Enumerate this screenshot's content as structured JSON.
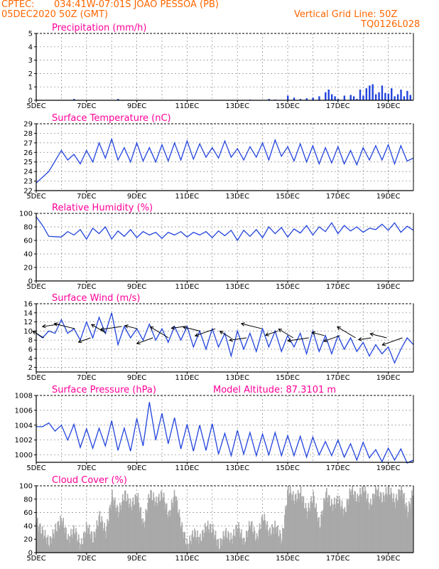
{
  "header": {
    "center": "CPTEC:",
    "location": "034:41W-07:01S  JOAO PESSOA (PB)",
    "date": "05DEC2020 50Z (GMT)",
    "grid_line": "Vertical Grid Line: 50Z",
    "run_code": "TQ0126L028"
  },
  "colors": {
    "header": "#ff6600",
    "title": "#ff0099",
    "line": "#2244dd",
    "cloud": "#a9a9a9",
    "arrow": "#000000"
  },
  "x_labels": [
    "5DEC",
    "7DEC",
    "9DEC",
    "11DEC",
    "13DEC",
    "15DEC",
    "17DEC",
    "19DEC"
  ],
  "x_axis": {
    "start_day": 5,
    "end_day": 20,
    "grid": "dashed, every day"
  },
  "chart_data": [
    {
      "type": "bar",
      "title": "Precipitation (mm/h)",
      "ylim": [
        0,
        5
      ],
      "yticks": [
        "0",
        "1",
        "2",
        "3",
        "4",
        "5"
      ],
      "x": [
        "5DEC00",
        "6DEC12",
        "8DEC06",
        "13DEC12",
        "14DEC06",
        "14DEC12",
        "15DEC00",
        "15DEC06",
        "15DEC12",
        "15DEC18",
        "16DEC00",
        "16DEC06",
        "16DEC12",
        "16DEC15",
        "16DEC18",
        "16DEC21",
        "17DEC00",
        "17DEC06",
        "17DEC12",
        "17DEC15",
        "17DEC18",
        "17DEC21",
        "18DEC00",
        "18DEC03",
        "18DEC06",
        "18DEC09",
        "18DEC12",
        "18DEC15",
        "18DEC18",
        "18DEC21",
        "19DEC00",
        "19DEC03",
        "19DEC06",
        "19DEC09",
        "19DEC12",
        "19DEC15",
        "19DEC18",
        "19DEC21"
      ],
      "values": [
        0.05,
        0.1,
        0.1,
        0.05,
        0.1,
        0.05,
        0.35,
        0.2,
        0.1,
        0.15,
        0.2,
        0.3,
        0.6,
        0.8,
        0.45,
        0.3,
        0.1,
        0.35,
        0.4,
        0.3,
        0.1,
        0.8,
        0.35,
        0.9,
        1.1,
        1.2,
        0.45,
        0.6,
        1.1,
        0.55,
        0.5,
        0.9,
        0.3,
        0.45,
        0.8,
        0.3,
        0.7,
        0.4
      ]
    },
    {
      "type": "line",
      "title": "Surface Temperature (nC)",
      "ylim": [
        22,
        29
      ],
      "yticks": [
        "22",
        "23",
        "24",
        "25",
        "26",
        "27",
        "28",
        "29"
      ],
      "x_days": [
        5.0,
        5.5,
        6.0,
        6.25,
        6.5,
        6.75,
        7.0,
        7.25,
        7.5,
        7.75,
        8.0,
        8.25,
        8.5,
        8.75,
        9.0,
        9.25,
        9.5,
        9.75,
        10.0,
        10.25,
        10.5,
        10.75,
        11.0,
        11.25,
        11.5,
        11.75,
        12.0,
        12.25,
        12.5,
        12.75,
        13.0,
        13.25,
        13.5,
        13.75,
        14.0,
        14.25,
        14.5,
        14.75,
        15.0,
        15.25,
        15.5,
        15.75,
        16.0,
        16.25,
        16.5,
        16.75,
        17.0,
        17.25,
        17.5,
        17.75,
        18.0,
        18.25,
        18.5,
        18.75,
        19.0,
        19.25,
        19.5,
        19.75,
        20.0
      ],
      "values": [
        22.8,
        24.0,
        26.2,
        25.2,
        25.8,
        24.8,
        26.2,
        25.0,
        27.0,
        25.4,
        27.4,
        25.2,
        26.5,
        25.0,
        27.0,
        25.1,
        26.5,
        25.0,
        26.8,
        25.1,
        27.0,
        25.2,
        27.2,
        25.3,
        26.9,
        25.5,
        26.5,
        25.4,
        27.2,
        25.5,
        26.4,
        25.2,
        26.6,
        25.5,
        27.0,
        25.2,
        27.3,
        25.6,
        26.6,
        25.1,
        26.9,
        25.0,
        26.7,
        24.8,
        26.5,
        24.9,
        26.6,
        24.8,
        26.2,
        24.7,
        26.5,
        25.2,
        26.7,
        25.2,
        26.8,
        24.8,
        26.7,
        25.1,
        25.4
      ]
    },
    {
      "type": "line",
      "title": "Relative Humidity (%)",
      "ylim": [
        0,
        100
      ],
      "yticks": [
        "0",
        "20",
        "40",
        "60",
        "80",
        "100"
      ],
      "x_days": [
        5.0,
        5.25,
        5.5,
        6.0,
        6.25,
        6.5,
        6.75,
        7.0,
        7.25,
        7.5,
        7.75,
        8.0,
        8.25,
        8.5,
        8.75,
        9.0,
        9.25,
        9.5,
        9.75,
        10.0,
        10.25,
        10.5,
        10.75,
        11.0,
        11.25,
        11.5,
        11.75,
        12.0,
        12.25,
        12.5,
        12.75,
        13.0,
        13.25,
        13.5,
        13.75,
        14.0,
        14.25,
        14.5,
        14.75,
        15.0,
        15.25,
        15.5,
        15.75,
        16.0,
        16.25,
        16.5,
        16.75,
        17.0,
        17.25,
        17.5,
        17.75,
        18.0,
        18.25,
        18.5,
        18.75,
        19.0,
        19.25,
        19.5,
        19.75,
        20.0
      ],
      "values": [
        95,
        82,
        66,
        65,
        73,
        68,
        76,
        62,
        78,
        70,
        80,
        62,
        74,
        66,
        76,
        64,
        73,
        68,
        72,
        63,
        72,
        68,
        73,
        65,
        72,
        68,
        73,
        64,
        74,
        67,
        75,
        60,
        75,
        66,
        76,
        64,
        80,
        70,
        79,
        65,
        77,
        71,
        82,
        68,
        80,
        73,
        86,
        70,
        82,
        74,
        80,
        72,
        78,
        76,
        84,
        75,
        86,
        72,
        81,
        75
      ]
    },
    {
      "type": "line",
      "title": "Surface Wind (m/s)",
      "ylim": [
        1,
        16
      ],
      "yticks": [
        "2",
        "4",
        "6",
        "8",
        "10",
        "12",
        "14",
        "16"
      ],
      "x_days": [
        5.0,
        5.25,
        5.5,
        5.75,
        6.0,
        6.25,
        6.5,
        6.75,
        7.0,
        7.25,
        7.5,
        7.75,
        8.0,
        8.25,
        8.5,
        8.75,
        9.0,
        9.25,
        9.5,
        9.75,
        10.0,
        10.25,
        10.5,
        10.75,
        11.0,
        11.25,
        11.5,
        11.75,
        12.0,
        12.25,
        12.5,
        12.75,
        13.0,
        13.25,
        13.5,
        13.75,
        14.0,
        14.25,
        14.5,
        14.75,
        15.0,
        15.25,
        15.5,
        15.75,
        16.0,
        16.25,
        16.5,
        16.75,
        17.0,
        17.25,
        17.5,
        17.75,
        18.0,
        18.25,
        18.5,
        18.75,
        19.0,
        19.25,
        19.5,
        19.75,
        20.0
      ],
      "values": [
        9.5,
        8.5,
        10.0,
        9.5,
        12.5,
        9.5,
        10.5,
        8.0,
        12.0,
        8.5,
        13.0,
        9.5,
        14.0,
        7.0,
        11.0,
        8.5,
        10.5,
        8.0,
        11.5,
        8.0,
        10.5,
        7.5,
        11.0,
        8.0,
        11.0,
        6.5,
        10.0,
        6.0,
        10.5,
        6.5,
        9.5,
        4.5,
        10.0,
        6.0,
        9.5,
        5.5,
        10.5,
        6.5,
        10.0,
        5.5,
        9.0,
        6.5,
        9.5,
        5.0,
        10.0,
        5.5,
        9.0,
        5.0,
        9.0,
        6.0,
        8.5,
        5.5,
        7.5,
        4.5,
        7.0,
        5.0,
        6.5,
        3.0,
        6.0,
        8.5,
        7.0
      ],
      "arrows_label": "wind direction vectors"
    },
    {
      "type": "line",
      "title": "Surface Pressure (hPa)",
      "model_altitude": "Model Altitude: 87.3101 m",
      "ylim": [
        999,
        1008
      ],
      "yticks": [
        "1000",
        "1002",
        "1004",
        "1006",
        "1008"
      ],
      "x_days": [
        5.0,
        5.25,
        5.5,
        5.75,
        6.0,
        6.25,
        6.5,
        6.75,
        7.0,
        7.25,
        7.5,
        7.75,
        8.0,
        8.25,
        8.5,
        8.75,
        9.0,
        9.25,
        9.5,
        9.75,
        10.0,
        10.25,
        10.5,
        10.75,
        11.0,
        11.25,
        11.5,
        11.75,
        12.0,
        12.25,
        12.5,
        12.75,
        13.0,
        13.25,
        13.5,
        13.75,
        14.0,
        14.25,
        14.5,
        14.75,
        15.0,
        15.25,
        15.5,
        15.75,
        16.0,
        16.25,
        16.5,
        16.75,
        17.0,
        17.25,
        17.5,
        17.75,
        18.0,
        18.25,
        18.5,
        18.75,
        19.0,
        19.25,
        19.5,
        19.75,
        20.0
      ],
      "values": [
        1003.8,
        1003.8,
        1004.3,
        1003.2,
        1004.0,
        1002.0,
        1004.1,
        1001.0,
        1003.5,
        1000.9,
        1003.6,
        1001.2,
        1004.6,
        1000.6,
        1003.6,
        1000.5,
        1004.9,
        1001.2,
        1007.1,
        1002.0,
        1005.6,
        1001.5,
        1005.0,
        1000.8,
        1004.1,
        1000.5,
        1004.0,
        1000.6,
        1004.2,
        1000.1,
        1002.9,
        999.9,
        1003.3,
        1000.1,
        1003.0,
        999.9,
        1002.8,
        1000.0,
        1003.0,
        999.9,
        1002.6,
        999.9,
        1002.5,
        999.7,
        1002.4,
        1000.0,
        1001.8,
        999.9,
        1002.0,
        999.7,
        1001.5,
        999.3,
        1001.7,
        999.6,
        1000.7,
        999.1,
        1000.9,
        999.3,
        1000.8,
        998.9,
        999.3
      ]
    },
    {
      "type": "area",
      "title": "Cloud Cover (%)",
      "ylim": [
        0,
        100
      ],
      "yticks": [
        "0",
        "20",
        "40",
        "60",
        "80",
        "100"
      ],
      "x_days": [
        5.0,
        5.25,
        5.5,
        5.75,
        6.0,
        6.25,
        6.5,
        6.75,
        7.0,
        7.25,
        7.5,
        7.75,
        8.0,
        8.25,
        8.5,
        8.75,
        9.0,
        9.25,
        9.5,
        9.75,
        10.0,
        10.25,
        10.5,
        10.75,
        11.0,
        11.25,
        11.5,
        11.75,
        12.0,
        12.25,
        12.5,
        12.75,
        13.0,
        13.25,
        13.5,
        13.75,
        14.0,
        14.25,
        14.5,
        14.75,
        15.0,
        15.25,
        15.5,
        15.75,
        16.0,
        16.25,
        16.5,
        16.75,
        17.0,
        17.25,
        17.5,
        17.75,
        18.0,
        18.25,
        18.5,
        18.75,
        19.0,
        19.25,
        19.5,
        19.75,
        20.0
      ],
      "values": [
        45,
        30,
        15,
        35,
        50,
        20,
        35,
        10,
        40,
        20,
        55,
        30,
        85,
        60,
        88,
        70,
        85,
        40,
        90,
        75,
        88,
        55,
        89,
        40,
        10,
        30,
        20,
        40,
        35,
        10,
        30,
        20,
        40,
        15,
        45,
        20,
        55,
        30,
        40,
        20,
        95,
        80,
        90,
        60,
        85,
        40,
        90,
        70,
        80,
        60,
        95,
        80,
        98,
        70,
        95,
        80,
        96,
        75,
        98,
        60,
        97
      ]
    }
  ]
}
